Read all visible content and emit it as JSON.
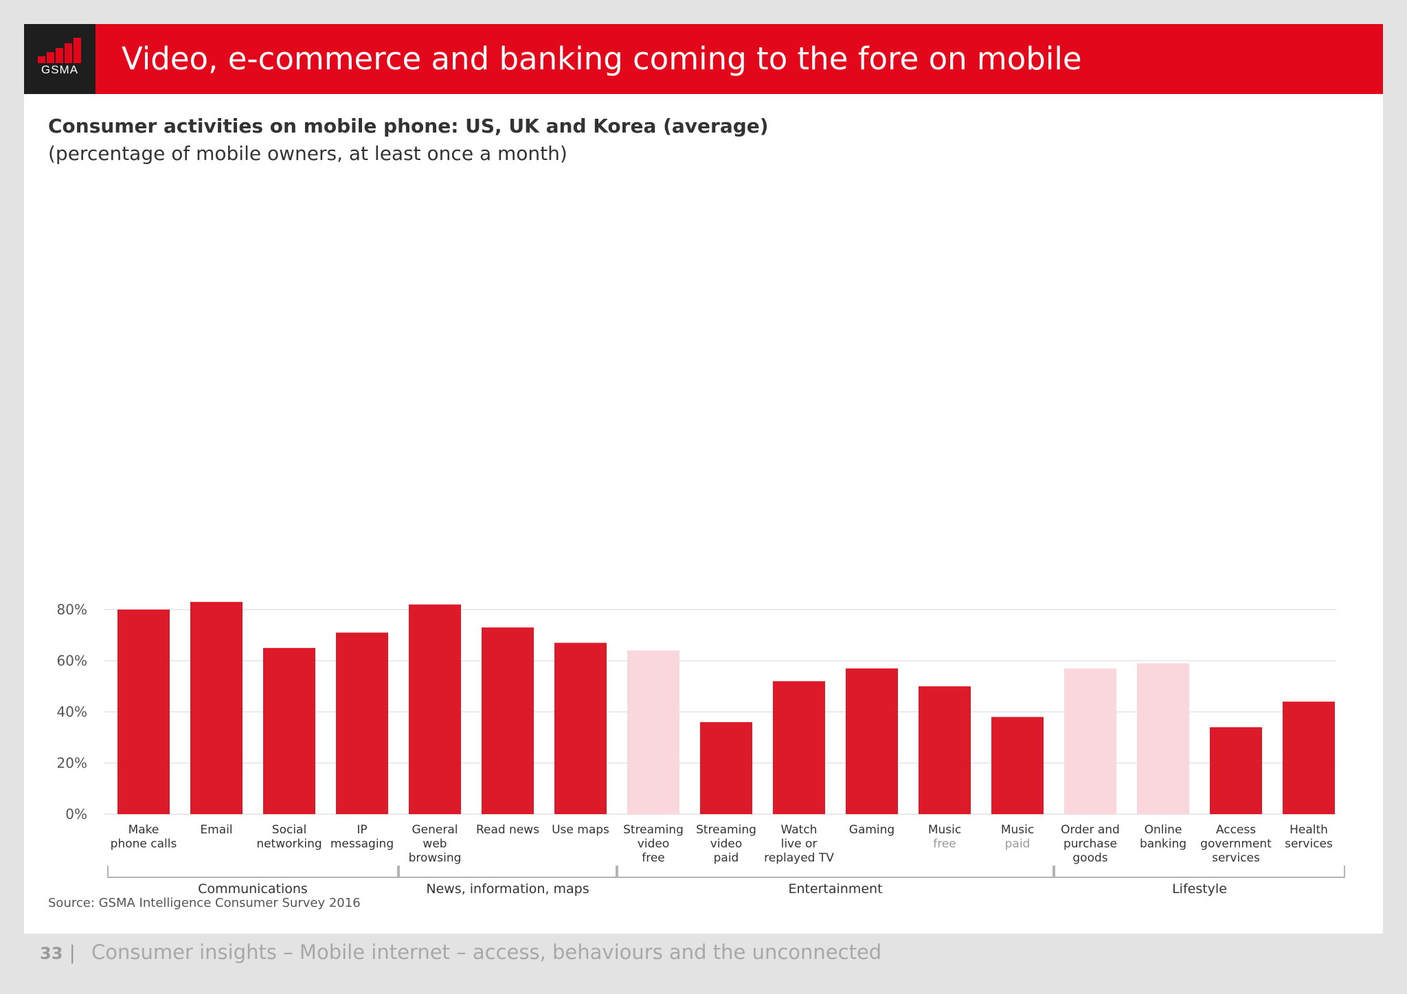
{
  "header": {
    "logo_text": "GSMA",
    "title": "Video, e-commerce and banking coming to the fore on mobile"
  },
  "colors": {
    "brand_red": "#e3071b",
    "bar": "#dc1a29",
    "bar_highlight": "#f9d7dd",
    "grid": "#e4e4e4",
    "text": "#333333"
  },
  "chart_data": {
    "type": "bar",
    "title": "Consumer activities on mobile phone: US, UK and Korea (average)",
    "subtitle": "(percentage of mobile owners, at least once a month)",
    "ylim": [
      0,
      80
    ],
    "yticks": [
      "0%",
      "20%",
      "40%",
      "60%",
      "80%"
    ],
    "ytick_values": [
      0,
      20,
      40,
      60,
      80
    ],
    "grid": true,
    "categories": [
      {
        "label": [
          "Make",
          "phone calls"
        ],
        "value": 80,
        "highlight": false
      },
      {
        "label": [
          "Email"
        ],
        "value": 83,
        "highlight": false
      },
      {
        "label": [
          "Social",
          "networking"
        ],
        "value": 65,
        "highlight": false
      },
      {
        "label": [
          "IP",
          "messaging"
        ],
        "value": 71,
        "highlight": false
      },
      {
        "label": [
          "General",
          "web",
          "browsing"
        ],
        "value": 82,
        "highlight": false
      },
      {
        "label": [
          "Read news"
        ],
        "value": 73,
        "highlight": false
      },
      {
        "label": [
          "Use maps"
        ],
        "value": 67,
        "highlight": false
      },
      {
        "label": [
          "Streaming",
          "video",
          "free"
        ],
        "value": 64,
        "highlight": true
      },
      {
        "label": [
          "Streaming",
          "video",
          "paid"
        ],
        "value": 36,
        "highlight": false
      },
      {
        "label": [
          "Watch",
          "live or",
          "replayed TV"
        ],
        "value": 52,
        "highlight": false
      },
      {
        "label": [
          "Gaming"
        ],
        "value": 57,
        "highlight": false
      },
      {
        "label": [
          "Music",
          "free"
        ],
        "value": 50,
        "highlight": false,
        "muted_lines": [
          1
        ]
      },
      {
        "label": [
          "Music",
          "paid"
        ],
        "value": 38,
        "highlight": false,
        "muted_lines": [
          1
        ]
      },
      {
        "label": [
          "Order and",
          "purchase",
          "goods"
        ],
        "value": 57,
        "highlight": true
      },
      {
        "label": [
          "Online",
          "banking"
        ],
        "value": 59,
        "highlight": true
      },
      {
        "label": [
          "Access",
          "government",
          "services"
        ],
        "value": 34,
        "highlight": false
      },
      {
        "label": [
          "Health",
          "services"
        ],
        "value": 44,
        "highlight": false
      }
    ],
    "groups": [
      {
        "name": "Communications",
        "start": 0,
        "end": 3
      },
      {
        "name": "News, information, maps",
        "start": 4,
        "end": 6
      },
      {
        "name": "Entertainment",
        "start": 7,
        "end": 12
      },
      {
        "name": "Lifestyle",
        "start": 13,
        "end": 16
      }
    ],
    "source": "Source: GSMA Intelligence Consumer Survey 2016"
  },
  "footer": {
    "page_number": "33",
    "separator": "|",
    "text": "Consumer insights – Mobile internet – access, behaviours and the unconnected"
  }
}
